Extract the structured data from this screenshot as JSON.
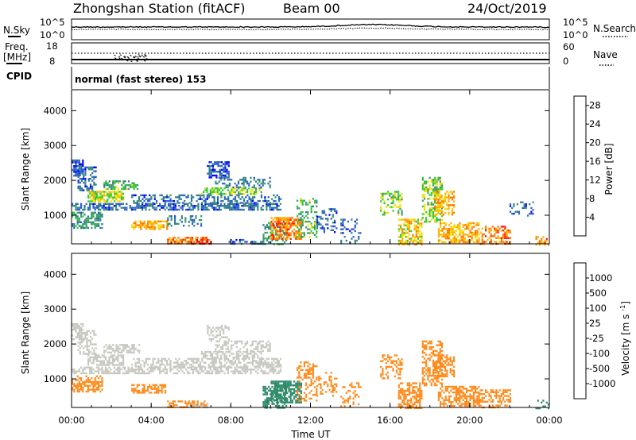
{
  "header": {
    "station": "Zhongshan Station (fitACF)",
    "beam": "Beam 00",
    "date": "24/Oct/2019"
  },
  "top_panel": {
    "left_label": "N.Sky",
    "right_label": "N.Search",
    "left_ticks": [
      "10^5",
      "10^0"
    ],
    "right_ticks": [
      "10^5",
      "10^0"
    ]
  },
  "freq_panel": {
    "left_label_1": "Freq.",
    "left_label_2": "[MHz]",
    "right_label": "Nave",
    "left_ticks": [
      "18",
      "8"
    ],
    "right_ticks": [
      "60",
      "0"
    ]
  },
  "cpid_panel": {
    "label": "CPID",
    "mode_text": "normal (fast stereo) 153"
  },
  "chart_data": [
    {
      "type": "heatmap",
      "name": "Power",
      "ylabel": "Slant Range [km]",
      "ylim": [
        180,
        4600
      ],
      "yticks": [
        1000,
        2000,
        3000,
        4000
      ],
      "xlim": [
        0,
        24
      ],
      "colorbar": {
        "label": "Power [dB]",
        "ticks": [
          "4",
          "8",
          "12",
          "16",
          "20",
          "24",
          "28"
        ],
        "colors": [
          "#0000ff",
          "#2b58d8",
          "#2e7d8c",
          "#3f9a6a",
          "#2ecb2e",
          "#f0e000",
          "#ffb000",
          "#ff7a00",
          "#ff2000",
          "#e00000"
        ]
      },
      "regions": [
        {
          "t0": 0.0,
          "t1": 0.6,
          "r0": 2150,
          "r1": 2600,
          "value": 5,
          "density": 0.7
        },
        {
          "t0": 0.3,
          "t1": 1.2,
          "r0": 1700,
          "r1": 2400,
          "value": 6,
          "density": 0.55
        },
        {
          "t0": 0.8,
          "t1": 2.6,
          "r0": 1400,
          "r1": 1700,
          "value": 16,
          "density": 0.75
        },
        {
          "t0": 1.6,
          "t1": 3.4,
          "r0": 1750,
          "r1": 2000,
          "value": 12,
          "density": 0.6
        },
        {
          "t0": 0.0,
          "t1": 10.5,
          "r0": 1150,
          "r1": 1350,
          "value": 6,
          "density": 0.65
        },
        {
          "t0": 3.0,
          "t1": 10.5,
          "r0": 1380,
          "r1": 1600,
          "value": 6,
          "density": 0.45
        },
        {
          "t0": 6.5,
          "t1": 9.5,
          "r0": 1600,
          "r1": 1800,
          "value": 14,
          "density": 0.55
        },
        {
          "t0": 6.8,
          "t1": 7.9,
          "r0": 2100,
          "r1": 2550,
          "value": 5,
          "density": 0.6
        },
        {
          "t0": 7.2,
          "t1": 10.0,
          "r0": 1800,
          "r1": 2100,
          "value": 8,
          "density": 0.4
        },
        {
          "t0": 0.0,
          "t1": 1.5,
          "r0": 650,
          "r1": 1100,
          "value": 9,
          "density": 0.55
        },
        {
          "t0": 3.0,
          "t1": 4.8,
          "r0": 600,
          "r1": 850,
          "value": 20,
          "density": 0.6
        },
        {
          "t0": 4.8,
          "t1": 6.5,
          "r0": 700,
          "r1": 1000,
          "value": 8,
          "density": 0.35
        },
        {
          "t0": 4.8,
          "t1": 6.8,
          "r0": 180,
          "r1": 380,
          "value": 22,
          "density": 0.65
        },
        {
          "t0": 6.0,
          "t1": 7.0,
          "r0": 180,
          "r1": 320,
          "value": 27,
          "density": 0.5
        },
        {
          "t0": 7.8,
          "t1": 9.6,
          "r0": 180,
          "r1": 320,
          "value": 6,
          "density": 0.4
        },
        {
          "t0": 9.6,
          "t1": 10.8,
          "r0": 180,
          "r1": 800,
          "value": 10,
          "density": 0.45
        },
        {
          "t0": 10.0,
          "t1": 11.5,
          "r0": 300,
          "r1": 950,
          "value": 22,
          "density": 0.7
        },
        {
          "t0": 11.3,
          "t1": 12.3,
          "r0": 400,
          "r1": 1500,
          "value": 12,
          "density": 0.35
        },
        {
          "t0": 12.3,
          "t1": 13.3,
          "r0": 500,
          "r1": 1200,
          "value": 6,
          "density": 0.3
        },
        {
          "t0": 13.5,
          "t1": 14.5,
          "r0": 200,
          "r1": 900,
          "value": 6,
          "density": 0.25
        },
        {
          "t0": 15.5,
          "t1": 16.6,
          "r0": 1000,
          "r1": 1700,
          "value": 14,
          "density": 0.45
        },
        {
          "t0": 16.4,
          "t1": 17.6,
          "r0": 180,
          "r1": 900,
          "value": 18,
          "density": 0.6
        },
        {
          "t0": 17.6,
          "t1": 18.6,
          "r0": 800,
          "r1": 2100,
          "value": 14,
          "density": 0.5
        },
        {
          "t0": 18.2,
          "t1": 19.2,
          "r0": 1000,
          "r1": 1700,
          "value": 20,
          "density": 0.55
        },
        {
          "t0": 18.4,
          "t1": 20.5,
          "r0": 200,
          "r1": 800,
          "value": 20,
          "density": 0.6
        },
        {
          "t0": 20.5,
          "t1": 22.0,
          "r0": 180,
          "r1": 700,
          "value": 22,
          "density": 0.55
        },
        {
          "t0": 22.0,
          "t1": 23.2,
          "r0": 1000,
          "r1": 1400,
          "value": 6,
          "density": 0.3
        },
        {
          "t0": 23.3,
          "t1": 24.0,
          "r0": 180,
          "r1": 400,
          "value": 22,
          "density": 0.45
        }
      ]
    },
    {
      "type": "heatmap",
      "name": "Velocity",
      "ylabel": "Slant Range [km]",
      "ylim": [
        180,
        4600
      ],
      "yticks": [
        1000,
        2000,
        3000,
        4000
      ],
      "xlim": [
        0,
        24
      ],
      "xlabel": "Time UT",
      "xticks": [
        "00:00",
        "04:00",
        "08:00",
        "12:00",
        "16:00",
        "20:00",
        "00:00"
      ],
      "colorbar": {
        "label": "Velocity [m s^-1]",
        "ticks": [
          "1000",
          "500",
          "100",
          "25",
          "-25",
          "-100",
          "-500",
          "-1000"
        ],
        "colors": [
          "#1f3fbf",
          "#3f6fd8",
          "#2f8a6a",
          "#3fb04f",
          "#c8c8c0",
          "#f0b000",
          "#ff8a1a",
          "#ff5a10",
          "#ff2000"
        ]
      },
      "regions": [
        {
          "t0": 0.0,
          "t1": 0.6,
          "r0": 2150,
          "r1": 2600,
          "value": 0,
          "density": 0.65
        },
        {
          "t0": 0.3,
          "t1": 1.2,
          "r0": 1700,
          "r1": 2400,
          "value": 0,
          "density": 0.5
        },
        {
          "t0": 0.8,
          "t1": 2.6,
          "r0": 1400,
          "r1": 1700,
          "value": 0,
          "density": 0.7
        },
        {
          "t0": 1.6,
          "t1": 3.4,
          "r0": 1750,
          "r1": 2000,
          "value": 0,
          "density": 0.55
        },
        {
          "t0": 0.0,
          "t1": 10.5,
          "r0": 1150,
          "r1": 1350,
          "value": 0,
          "density": 0.6
        },
        {
          "t0": 3.0,
          "t1": 10.5,
          "r0": 1380,
          "r1": 1600,
          "value": 0,
          "density": 0.55
        },
        {
          "t0": 6.5,
          "t1": 9.5,
          "r0": 1600,
          "r1": 1800,
          "value": 0,
          "density": 0.55
        },
        {
          "t0": 6.8,
          "t1": 7.9,
          "r0": 2100,
          "r1": 2550,
          "value": 0,
          "density": 0.5
        },
        {
          "t0": 7.2,
          "t1": 10.0,
          "r0": 1800,
          "r1": 2100,
          "value": 0,
          "density": 0.4
        },
        {
          "t0": 0.0,
          "t1": 1.5,
          "r0": 650,
          "r1": 1100,
          "value": -300,
          "density": 0.55
        },
        {
          "t0": 3.0,
          "t1": 4.8,
          "r0": 600,
          "r1": 850,
          "value": -300,
          "density": 0.6
        },
        {
          "t0": 4.8,
          "t1": 6.8,
          "r0": 180,
          "r1": 380,
          "value": -200,
          "density": 0.55
        },
        {
          "t0": 6.0,
          "t1": 7.0,
          "r0": 180,
          "r1": 320,
          "value": 0,
          "density": 0.4
        },
        {
          "t0": 9.6,
          "t1": 10.8,
          "r0": 180,
          "r1": 800,
          "value": 200,
          "density": 0.6
        },
        {
          "t0": 10.0,
          "t1": 11.5,
          "r0": 300,
          "r1": 950,
          "value": 150,
          "density": 0.7
        },
        {
          "t0": 11.3,
          "t1": 12.3,
          "r0": 400,
          "r1": 1500,
          "value": -200,
          "density": 0.35
        },
        {
          "t0": 12.3,
          "t1": 13.3,
          "r0": 500,
          "r1": 1200,
          "value": -200,
          "density": 0.3
        },
        {
          "t0": 13.5,
          "t1": 14.5,
          "r0": 200,
          "r1": 900,
          "value": -300,
          "density": 0.25
        },
        {
          "t0": 15.5,
          "t1": 16.6,
          "r0": 1000,
          "r1": 1700,
          "value": -300,
          "density": 0.45
        },
        {
          "t0": 16.4,
          "t1": 17.6,
          "r0": 180,
          "r1": 900,
          "value": -300,
          "density": 0.6
        },
        {
          "t0": 17.6,
          "t1": 18.6,
          "r0": 800,
          "r1": 2100,
          "value": -300,
          "density": 0.5
        },
        {
          "t0": 18.2,
          "t1": 19.2,
          "r0": 1000,
          "r1": 1700,
          "value": -300,
          "density": 0.5
        },
        {
          "t0": 18.4,
          "t1": 20.5,
          "r0": 200,
          "r1": 800,
          "value": -300,
          "density": 0.6
        },
        {
          "t0": 20.5,
          "t1": 22.0,
          "r0": 180,
          "r1": 700,
          "value": -200,
          "density": 0.5
        },
        {
          "t0": 23.3,
          "t1": 24.0,
          "r0": 180,
          "r1": 400,
          "value": 150,
          "density": 0.4
        }
      ]
    }
  ]
}
